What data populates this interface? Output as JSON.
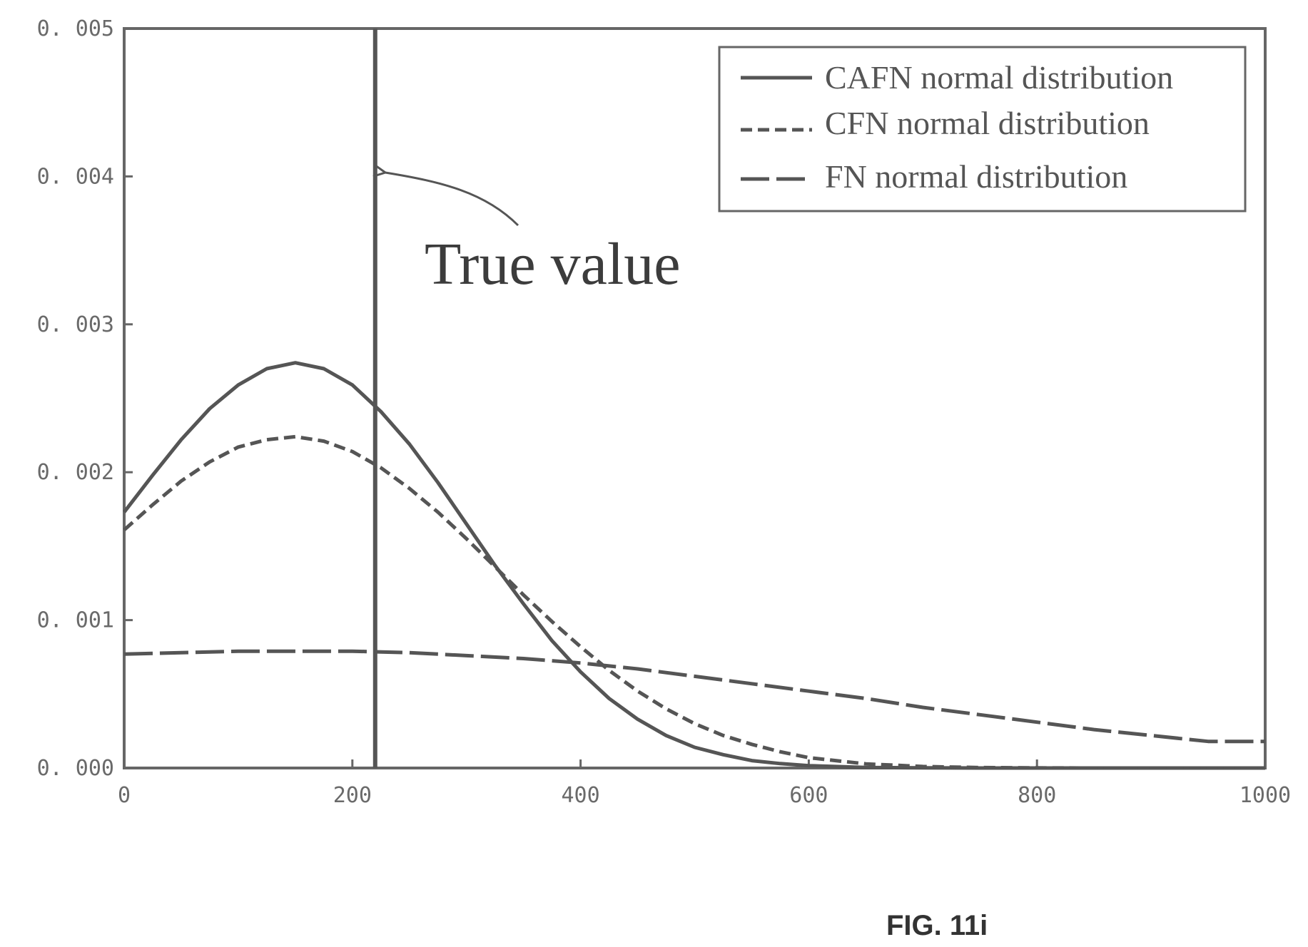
{
  "chart_data": {
    "type": "line",
    "title": "",
    "xlabel": "",
    "ylabel": "",
    "xlim": [
      0,
      1000
    ],
    "ylim": [
      0,
      0.005
    ],
    "x_ticks": [
      0,
      200,
      400,
      600,
      800,
      1000
    ],
    "y_ticks": [
      0,
      0.001,
      0.002,
      0.003,
      0.004,
      0.005
    ],
    "x_tick_labels": [
      "0",
      "200",
      "400",
      "600",
      "800",
      "1000"
    ],
    "y_tick_labels": [
      "0. 000",
      "0. 001",
      "0. 002",
      "0. 003",
      "0. 004",
      "0. 005"
    ],
    "grid": false,
    "legend_position": "top-right",
    "series": [
      {
        "name": "CAFN normal distribution",
        "line_style": "solid",
        "color": "#555555",
        "x": [
          0,
          25,
          50,
          75,
          100,
          125,
          150,
          175,
          200,
          225,
          250,
          275,
          300,
          325,
          350,
          375,
          400,
          425,
          450,
          475,
          500,
          525,
          550,
          575,
          600,
          650,
          700,
          750,
          800,
          850,
          900,
          950,
          1000
        ],
        "y": [
          0.00173,
          0.00198,
          0.00222,
          0.00243,
          0.00259,
          0.0027,
          0.00274,
          0.0027,
          0.00259,
          0.00241,
          0.00219,
          0.00193,
          0.00165,
          0.00137,
          0.00111,
          0.00086,
          0.00065,
          0.00047,
          0.00033,
          0.00022,
          0.00014,
          9e-05,
          5e-05,
          3e-05,
          1.6e-05,
          4e-06,
          1e-06,
          0,
          0,
          0,
          0,
          0,
          0
        ]
      },
      {
        "name": "CFN normal distribution",
        "line_style": "dashed",
        "color": "#555555",
        "x": [
          0,
          25,
          50,
          75,
          100,
          125,
          150,
          175,
          200,
          225,
          250,
          275,
          300,
          325,
          350,
          375,
          400,
          425,
          450,
          475,
          500,
          525,
          550,
          575,
          600,
          650,
          700,
          750,
          800,
          850,
          900,
          950,
          1000
        ],
        "y": [
          0.00161,
          0.00178,
          0.00194,
          0.00207,
          0.00217,
          0.00222,
          0.00224,
          0.00221,
          0.00214,
          0.00203,
          0.00189,
          0.00173,
          0.00155,
          0.00136,
          0.00117,
          0.00099,
          0.00082,
          0.00066,
          0.00052,
          0.0004,
          0.0003,
          0.00022,
          0.00016,
          0.00011,
          7e-05,
          2.8e-05,
          1e-05,
          3e-06,
          1e-06,
          0,
          0,
          0,
          0
        ]
      },
      {
        "name": "FN normal distribution",
        "line_style": "long-dash",
        "color": "#555555",
        "x": [
          0,
          50,
          100,
          150,
          200,
          250,
          300,
          350,
          400,
          450,
          500,
          550,
          600,
          650,
          700,
          750,
          800,
          850,
          900,
          950,
          1000
        ],
        "y": [
          0.00077,
          0.00078,
          0.00079,
          0.00079,
          0.00079,
          0.00078,
          0.00076,
          0.00074,
          0.00071,
          0.00067,
          0.00062,
          0.00057,
          0.00052,
          0.00047,
          0.00041,
          0.00036,
          0.00031,
          0.00026,
          0.00022,
          0.00018,
          0.00018
        ]
      }
    ],
    "reference_lines": [
      {
        "axis": "x",
        "value": 220,
        "color": "#555555"
      }
    ],
    "annotations": [
      {
        "text": "True value",
        "points_to": {
          "x": 220,
          "y": 0.004
        }
      }
    ]
  },
  "figure_caption": "FIG. 11i"
}
